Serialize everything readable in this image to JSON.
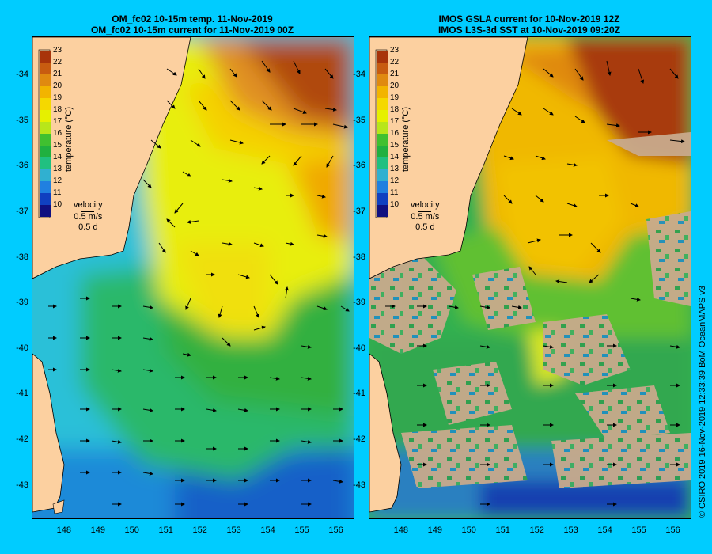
{
  "left_panel": {
    "title_line1": "OM_fc02 10-15m temp. 11-Nov-2019",
    "title_line2": "OM_fc02 10-15m current for 11-Nov-2019 00Z"
  },
  "right_panel": {
    "title_line1": "IMOS GSLA current for 10-Nov-2019 12Z",
    "title_line2": "IMOS L3S-3d SST at 10-Nov-2019 09:20Z"
  },
  "colorbar": {
    "label": "temperature (°C)",
    "ticks": [
      "23",
      "22",
      "21",
      "20",
      "19",
      "18",
      "17",
      "16",
      "15",
      "14",
      "13",
      "12",
      "11",
      "10"
    ],
    "colors": [
      "#a8340a",
      "#c85c10",
      "#e08a10",
      "#f2b400",
      "#f5d800",
      "#e6f000",
      "#b8e61a",
      "#40c030",
      "#20b040",
      "#20c080",
      "#30b0d0",
      "#2080e0",
      "#1040c0",
      "#101080"
    ]
  },
  "velocity_legend": {
    "label": "velocity",
    "speed": "0.5 m/s",
    "time": "0.5 d"
  },
  "map_data": {
    "lon_ticks": [
      "148",
      "149",
      "150",
      "151",
      "152",
      "153",
      "154",
      "155",
      "156"
    ],
    "lat_ticks": [
      "-34",
      "-35",
      "-36",
      "-37",
      "-38",
      "-39",
      "-40",
      "-41",
      "-42",
      "-43"
    ],
    "lon_range": [
      147.05,
      156.5
    ],
    "lat_range": [
      -43.7,
      -33.15
    ]
  },
  "credit": "© CSIRO 2019   16-Nov-2019 12:33:39 BoM OceanMAPS v3",
  "colors": {
    "background": "#00ccff",
    "land": "#fcd0a0",
    "no_data": "#c8aa8c"
  }
}
